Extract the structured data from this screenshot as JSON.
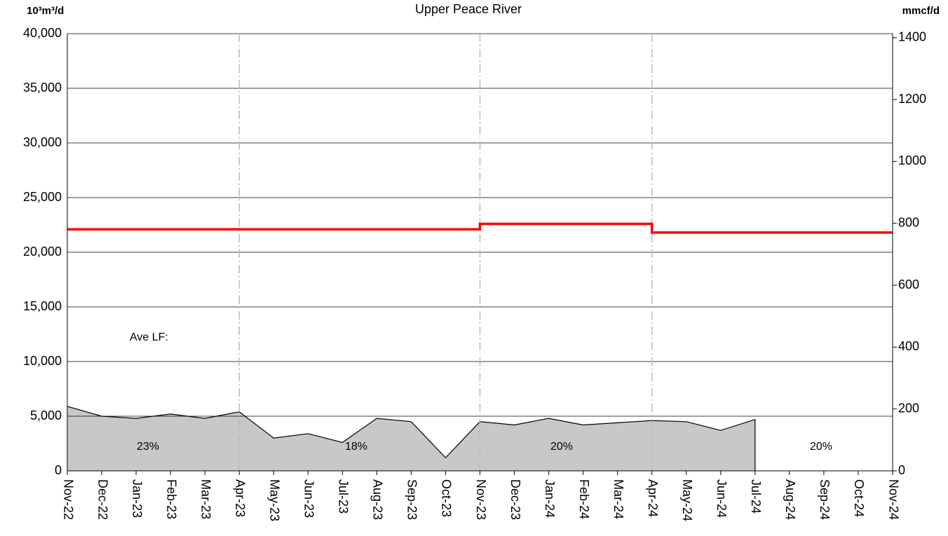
{
  "chart_data": {
    "type": "line",
    "title": "Upper Peace River",
    "y_label": "10³m³/d",
    "y2_label": "mmcf/d",
    "categories": [
      "Nov-22",
      "Dec-22",
      "Jan-23",
      "Feb-23",
      "Mar-23",
      "Apr-23",
      "May-23",
      "Jun-23",
      "Jul-23",
      "Aug-23",
      "Sep-23",
      "Oct-23",
      "Nov-23",
      "Dec-23",
      "Jan-24",
      "Feb-24",
      "Mar-24",
      "Apr-24",
      "May-24",
      "Jun-24",
      "Jul-24",
      "Aug-24",
      "Sep-24",
      "Oct-24",
      "Nov-24"
    ],
    "series": [
      {
        "draw": "area",
        "color": "#c8c8c8",
        "line_color": "#000000",
        "values": [
          5900,
          5000,
          4800,
          5200,
          4800,
          5400,
          3000,
          3400,
          2600,
          4800,
          4500,
          1200,
          4500,
          4200,
          4800,
          4200,
          4400,
          4600,
          4500,
          3700,
          4700,
          null,
          null,
          null,
          null
        ]
      },
      {
        "draw": "step",
        "color": "#ff0000",
        "values": [
          22100,
          22100,
          22100,
          22100,
          22100,
          22100,
          22100,
          22100,
          22100,
          22100,
          22100,
          22100,
          22600,
          22600,
          22600,
          22600,
          22600,
          21800,
          21800,
          21800,
          21800,
          21800,
          21800,
          21800,
          21800
        ]
      }
    ],
    "ylim": [
      0,
      40000
    ],
    "yticks": [
      0,
      {
        "value": 5000,
        "label": "5,000"
      },
      {
        "value": 10000,
        "label": "10,000"
      },
      {
        "value": 15000,
        "label": "15,000"
      },
      {
        "value": 20000,
        "label": "20,000"
      },
      {
        "value": 25000,
        "label": "25,000"
      },
      {
        "value": 30000,
        "label": "30,000"
      },
      {
        "value": 35000,
        "label": "35,000"
      },
      {
        "value": 40000,
        "label": "40,000"
      }
    ],
    "y2lim": [
      0,
      1413
    ],
    "y2ticks": [
      0,
      200,
      400,
      600,
      800,
      1000,
      1200,
      1400
    ],
    "grid": true,
    "annotations": [
      "Ave LF:",
      "23%",
      "18%",
      "20%",
      "20%"
    ]
  }
}
